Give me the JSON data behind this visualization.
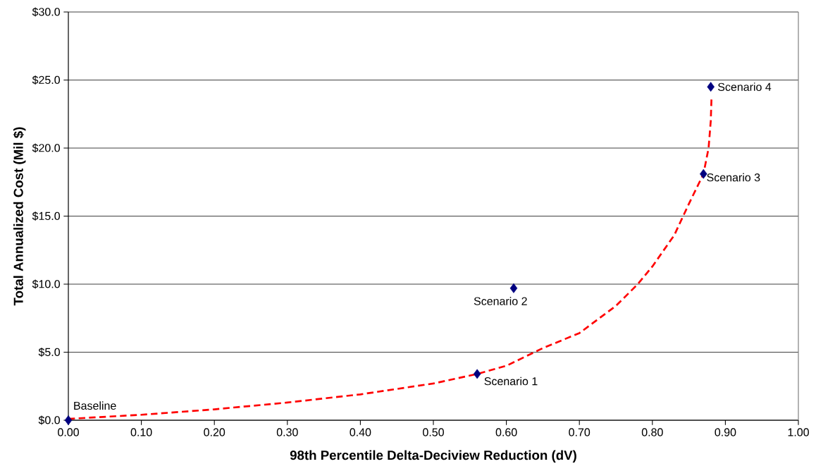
{
  "chart_data": {
    "type": "scatter",
    "xlabel": "98th Percentile Delta-Deciview Reduction (dV)",
    "ylabel": "Total Annualized Cost (Mil $)",
    "xlim": [
      0,
      1
    ],
    "ylim": [
      0,
      30
    ],
    "xticks": [
      {
        "value": 0,
        "label": "0.00"
      },
      {
        "value": 0.1,
        "label": "0.10"
      },
      {
        "value": 0.2,
        "label": "0.20"
      },
      {
        "value": 0.3,
        "label": "0.30"
      },
      {
        "value": 0.4,
        "label": "0.40"
      },
      {
        "value": 0.5,
        "label": "0.50"
      },
      {
        "value": 0.6,
        "label": "0.60"
      },
      {
        "value": 0.7,
        "label": "0.70"
      },
      {
        "value": 0.8,
        "label": "0.80"
      },
      {
        "value": 0.9,
        "label": "0.90"
      },
      {
        "value": 1,
        "label": "1.00"
      }
    ],
    "yticks": [
      {
        "value": 0,
        "label": "$0.0"
      },
      {
        "value": 5,
        "label": "$5.0"
      },
      {
        "value": 10,
        "label": "$10.0"
      },
      {
        "value": 15,
        "label": "$15.0"
      },
      {
        "value": 20,
        "label": "$20.0"
      },
      {
        "value": 25,
        "label": "$25.0"
      },
      {
        "value": 30,
        "label": "$30.0"
      }
    ],
    "grid": "y",
    "series": [
      {
        "type": "line",
        "color": "#ff0000",
        "line_style": "dashed",
        "marker": "none",
        "x": [
          0,
          0.1,
          0.2,
          0.3,
          0.4,
          0.5,
          0.56,
          0.6,
          0.65,
          0.7,
          0.75,
          0.78,
          0.8,
          0.83,
          0.85,
          0.87,
          0.877,
          0.88,
          0.881
        ],
        "values": [
          0.1,
          0.4,
          0.8,
          1.3,
          1.9,
          2.7,
          3.4,
          4.0,
          5.3,
          6.4,
          8.4,
          10.0,
          11.3,
          13.6,
          15.9,
          18.1,
          20.0,
          22.0,
          23.7
        ]
      },
      {
        "color": "#000080",
        "marker": "diamond",
        "x": [
          0,
          0.56,
          0.61,
          0.87,
          0.88
        ],
        "values": [
          0,
          3.4,
          9.7,
          18.1,
          24.5
        ]
      }
    ],
    "annotations": [
      {
        "text": "Baseline",
        "x": 0,
        "y": 0
      },
      {
        "text": "Scenario 1",
        "x": 0.56,
        "y": 3.4
      },
      {
        "text": "Scenario 2",
        "x": 0.61,
        "y": 9.7
      },
      {
        "text": "Scenario 3",
        "x": 0.87,
        "y": 18.1
      },
      {
        "text": "Scenario 4",
        "x": 0.88,
        "y": 24.5
      }
    ]
  }
}
